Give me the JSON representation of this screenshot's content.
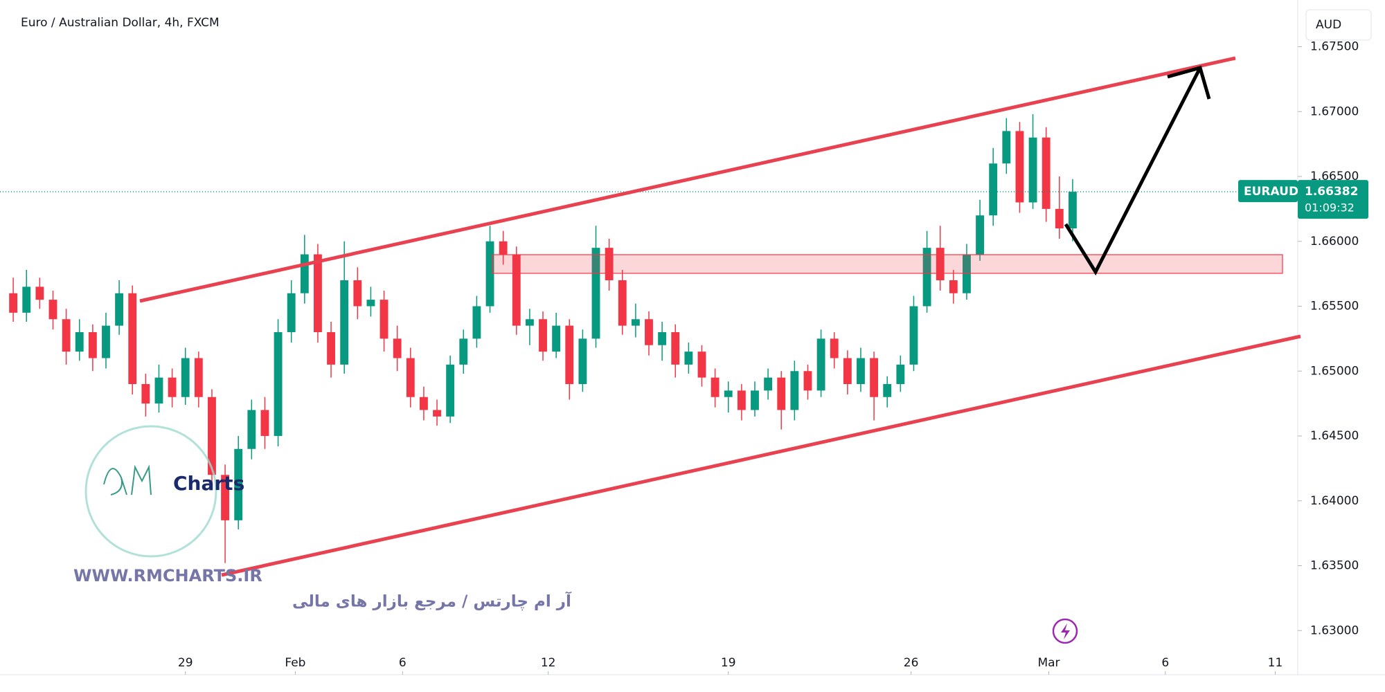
{
  "header": {
    "title": "Euro / Australian Dollar, 4h, FXCM",
    "currency_button": "AUD"
  },
  "price_tag": {
    "symbol": "EURAUD",
    "countdown": "01:09:32"
  },
  "watermark": {
    "logo_text": "Charts",
    "site": "WWW.RMCHARTS.IR",
    "slogan": "آر ام چارتس / مرجع بازار های مالی"
  },
  "chart_data": {
    "type": "candlestick",
    "up_color": "#089981",
    "down_color": "#f23645",
    "last_price": 1.66382,
    "ylim": [
      1.6266,
      1.6786
    ],
    "yticks": [
      {
        "value": 1.63,
        "label": "1.63000"
      },
      {
        "value": 1.635,
        "label": "1.63500"
      },
      {
        "value": 1.64,
        "label": "1.64000"
      },
      {
        "value": 1.645,
        "label": "1.64500"
      },
      {
        "value": 1.65,
        "label": "1.65000"
      },
      {
        "value": 1.655,
        "label": "1.65500"
      },
      {
        "value": 1.66,
        "label": "1.66000"
      },
      {
        "value": 1.665,
        "label": "1.66500"
      },
      {
        "value": 1.67,
        "label": "1.67000"
      },
      {
        "value": 1.675,
        "label": "1.67500"
      }
    ],
    "xlim": [
      -1,
      97
    ],
    "xticks": [
      {
        "value": 13,
        "label": "29"
      },
      {
        "value": 21.3,
        "label": "Feb"
      },
      {
        "value": 29.4,
        "label": "6"
      },
      {
        "value": 40.4,
        "label": "12"
      },
      {
        "value": 54,
        "label": "19"
      },
      {
        "value": 67.8,
        "label": "26"
      },
      {
        "value": 78.2,
        "label": "Mar"
      },
      {
        "value": 87,
        "label": "6"
      },
      {
        "value": 95.3,
        "label": "11"
      }
    ],
    "candles": [
      [
        1.656,
        1.6572,
        1.6538,
        1.6545
      ],
      [
        1.6545,
        1.6578,
        1.6538,
        1.6565
      ],
      [
        1.6565,
        1.6572,
        1.6548,
        1.6555
      ],
      [
        1.6555,
        1.6562,
        1.6532,
        1.654
      ],
      [
        1.654,
        1.6548,
        1.6505,
        1.6515
      ],
      [
        1.6515,
        1.654,
        1.6508,
        1.653
      ],
      [
        1.653,
        1.6536,
        1.65,
        1.651
      ],
      [
        1.651,
        1.6545,
        1.6502,
        1.6535
      ],
      [
        1.6535,
        1.657,
        1.6528,
        1.656
      ],
      [
        1.656,
        1.6566,
        1.6482,
        1.649
      ],
      [
        1.649,
        1.6498,
        1.6465,
        1.6475
      ],
      [
        1.6475,
        1.6505,
        1.6468,
        1.6495
      ],
      [
        1.6495,
        1.6502,
        1.6472,
        1.648
      ],
      [
        1.648,
        1.6518,
        1.6474,
        1.651
      ],
      [
        1.651,
        1.6515,
        1.6472,
        1.648
      ],
      [
        1.648,
        1.6486,
        1.6412,
        1.642
      ],
      [
        1.642,
        1.6428,
        1.6352,
        1.6385
      ],
      [
        1.6385,
        1.645,
        1.6378,
        1.644
      ],
      [
        1.644,
        1.6478,
        1.6432,
        1.647
      ],
      [
        1.647,
        1.648,
        1.644,
        1.645
      ],
      [
        1.645,
        1.654,
        1.6442,
        1.653
      ],
      [
        1.653,
        1.657,
        1.6522,
        1.656
      ],
      [
        1.656,
        1.6605,
        1.6552,
        1.659
      ],
      [
        1.659,
        1.6598,
        1.6522,
        1.653
      ],
      [
        1.653,
        1.6538,
        1.6495,
        1.6505
      ],
      [
        1.6505,
        1.66,
        1.6498,
        1.657
      ],
      [
        1.657,
        1.658,
        1.654,
        1.655
      ],
      [
        1.655,
        1.6565,
        1.6542,
        1.6555
      ],
      [
        1.6555,
        1.6562,
        1.6515,
        1.6525
      ],
      [
        1.6525,
        1.6535,
        1.65,
        1.651
      ],
      [
        1.651,
        1.6518,
        1.6472,
        1.648
      ],
      [
        1.648,
        1.6488,
        1.6462,
        1.647
      ],
      [
        1.647,
        1.6478,
        1.6458,
        1.6465
      ],
      [
        1.6465,
        1.6512,
        1.646,
        1.6505
      ],
      [
        1.6505,
        1.6532,
        1.6498,
        1.6525
      ],
      [
        1.6525,
        1.6558,
        1.6518,
        1.655
      ],
      [
        1.655,
        1.6612,
        1.6545,
        1.66
      ],
      [
        1.66,
        1.6608,
        1.6582,
        1.659
      ],
      [
        1.659,
        1.6596,
        1.6528,
        1.6535
      ],
      [
        1.6535,
        1.6548,
        1.652,
        1.654
      ],
      [
        1.654,
        1.6546,
        1.6508,
        1.6515
      ],
      [
        1.6515,
        1.6545,
        1.651,
        1.6535
      ],
      [
        1.6535,
        1.654,
        1.6478,
        1.649
      ],
      [
        1.649,
        1.6532,
        1.6484,
        1.6525
      ],
      [
        1.6525,
        1.6612,
        1.6518,
        1.6595
      ],
      [
        1.6595,
        1.6602,
        1.6562,
        1.657
      ],
      [
        1.657,
        1.6578,
        1.6528,
        1.6535
      ],
      [
        1.6535,
        1.6552,
        1.6526,
        1.654
      ],
      [
        1.654,
        1.6546,
        1.6512,
        1.652
      ],
      [
        1.652,
        1.6538,
        1.6508,
        1.653
      ],
      [
        1.653,
        1.6536,
        1.6495,
        1.6505
      ],
      [
        1.6505,
        1.6522,
        1.6498,
        1.6515
      ],
      [
        1.6515,
        1.652,
        1.6488,
        1.6495
      ],
      [
        1.6495,
        1.6502,
        1.6472,
        1.648
      ],
      [
        1.648,
        1.6492,
        1.6468,
        1.6485
      ],
      [
        1.6485,
        1.649,
        1.6462,
        1.647
      ],
      [
        1.647,
        1.6492,
        1.6465,
        1.6485
      ],
      [
        1.6485,
        1.6502,
        1.6478,
        1.6495
      ],
      [
        1.6495,
        1.65,
        1.6455,
        1.647
      ],
      [
        1.647,
        1.6508,
        1.6462,
        1.65
      ],
      [
        1.65,
        1.6505,
        1.6478,
        1.6485
      ],
      [
        1.6485,
        1.6532,
        1.648,
        1.6525
      ],
      [
        1.6525,
        1.653,
        1.6502,
        1.651
      ],
      [
        1.651,
        1.6516,
        1.6482,
        1.649
      ],
      [
        1.649,
        1.6518,
        1.6484,
        1.651
      ],
      [
        1.651,
        1.6515,
        1.6462,
        1.648
      ],
      [
        1.648,
        1.6496,
        1.6472,
        1.649
      ],
      [
        1.649,
        1.6512,
        1.6484,
        1.6505
      ],
      [
        1.6505,
        1.6558,
        1.65,
        1.655
      ],
      [
        1.655,
        1.6608,
        1.6545,
        1.6595
      ],
      [
        1.6595,
        1.6612,
        1.6562,
        1.657
      ],
      [
        1.657,
        1.6578,
        1.6552,
        1.656
      ],
      [
        1.656,
        1.6598,
        1.6555,
        1.659
      ],
      [
        1.659,
        1.6632,
        1.6585,
        1.662
      ],
      [
        1.662,
        1.6672,
        1.6612,
        1.666
      ],
      [
        1.666,
        1.6695,
        1.6652,
        1.6685
      ],
      [
        1.6685,
        1.6692,
        1.6622,
        1.663
      ],
      [
        1.663,
        1.6698,
        1.6625,
        1.668
      ],
      [
        1.668,
        1.6688,
        1.6615,
        1.6625
      ],
      [
        1.6625,
        1.665,
        1.6602,
        1.661
      ],
      [
        1.661,
        1.6648,
        1.66,
        1.66382
      ]
    ]
  }
}
